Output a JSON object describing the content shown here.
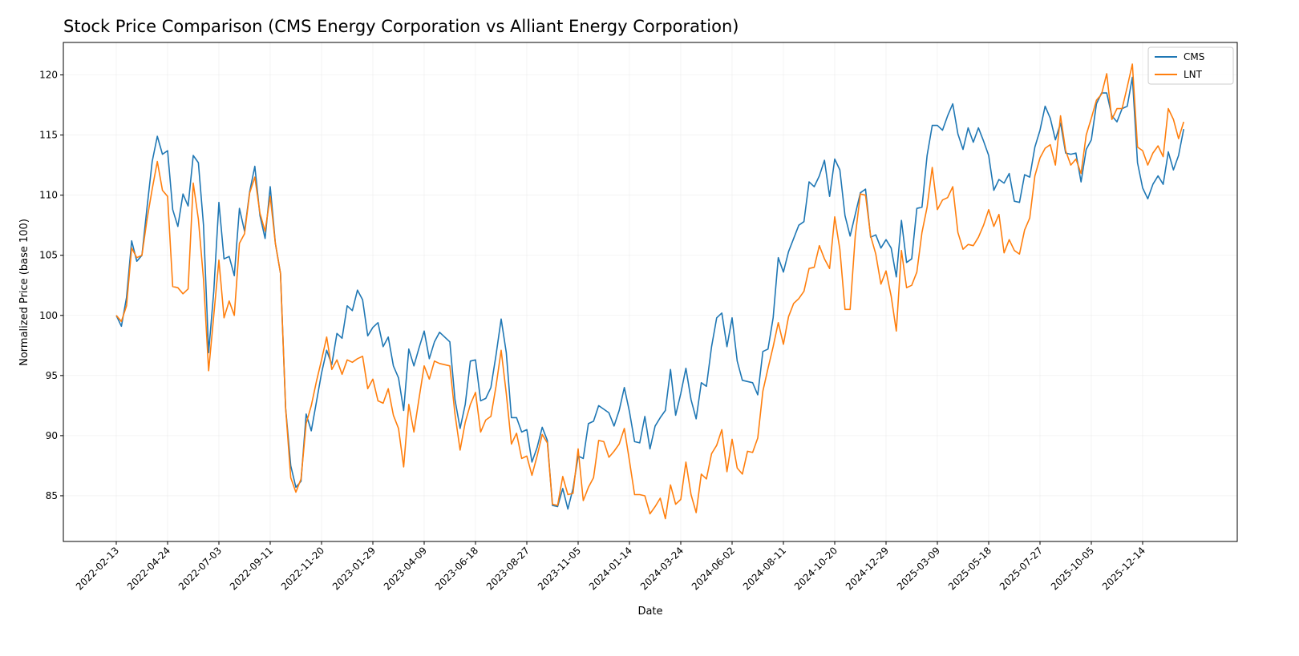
{
  "chart_data": {
    "type": "line",
    "title": "Stock Price Comparison (CMS Energy Corporation vs Alliant Energy Corporation)",
    "xlabel": "Date",
    "ylabel": "Normalized Price (base 100)",
    "ylim": [
      81.2,
      122.7
    ],
    "yticks": [
      85,
      90,
      95,
      100,
      105,
      110,
      115,
      120
    ],
    "xticks": [
      "2022-02-13",
      "2022-04-24",
      "2022-07-03",
      "2022-09-11",
      "2022-11-20",
      "2023-01-29",
      "2023-04-09",
      "2023-06-18",
      "2023-08-27",
      "2023-11-05",
      "2024-01-14",
      "2024-03-24",
      "2024-06-02",
      "2024-08-11",
      "2024-10-20",
      "2024-12-29",
      "2025-03-09",
      "2025-05-18",
      "2025-07-27",
      "2025-10-05",
      "2025-12-14"
    ],
    "grid": true,
    "legend": "top-right",
    "x": [
      "2022-02-13",
      "2022-02-20",
      "2022-02-27",
      "2022-03-06",
      "2022-03-13",
      "2022-03-20",
      "2022-03-27",
      "2022-04-03",
      "2022-04-10",
      "2022-04-17",
      "2022-04-24",
      "2022-05-01",
      "2022-05-08",
      "2022-05-15",
      "2022-05-22",
      "2022-05-29",
      "2022-06-05",
      "2022-06-12",
      "2022-06-19",
      "2022-06-26",
      "2022-07-03",
      "2022-07-10",
      "2022-07-17",
      "2022-07-24",
      "2022-07-31",
      "2022-08-07",
      "2022-08-14",
      "2022-08-21",
      "2022-08-28",
      "2022-09-04",
      "2022-09-11",
      "2022-09-18",
      "2022-09-25",
      "2022-10-02",
      "2022-10-09",
      "2022-10-16",
      "2022-10-23",
      "2022-10-30",
      "2022-11-06",
      "2022-11-13",
      "2022-11-20",
      "2022-11-27",
      "2022-12-04",
      "2022-12-11",
      "2022-12-18",
      "2022-12-25",
      "2023-01-01",
      "2023-01-08",
      "2023-01-15",
      "2023-01-22",
      "2023-01-29",
      "2023-02-05",
      "2023-02-12",
      "2023-02-19",
      "2023-02-26",
      "2023-03-05",
      "2023-03-12",
      "2023-03-19",
      "2023-03-26",
      "2023-04-02",
      "2023-04-09",
      "2023-04-16",
      "2023-04-23",
      "2023-04-30",
      "2023-05-07",
      "2023-05-14",
      "2023-05-21",
      "2023-05-28",
      "2023-06-04",
      "2023-06-11",
      "2023-06-18",
      "2023-06-25",
      "2023-07-02",
      "2023-07-09",
      "2023-07-16",
      "2023-07-23",
      "2023-07-30",
      "2023-08-06",
      "2023-08-13",
      "2023-08-20",
      "2023-08-27",
      "2023-09-03",
      "2023-09-10",
      "2023-09-17",
      "2023-09-24",
      "2023-10-01",
      "2023-10-08",
      "2023-10-15",
      "2023-10-22",
      "2023-10-29",
      "2023-11-05",
      "2023-11-12",
      "2023-11-19",
      "2023-11-26",
      "2023-12-03",
      "2023-12-10",
      "2023-12-17",
      "2023-12-24",
      "2023-12-31",
      "2024-01-07",
      "2024-01-14",
      "2024-01-21",
      "2024-01-28",
      "2024-02-04",
      "2024-02-11",
      "2024-02-18",
      "2024-02-25",
      "2024-03-03",
      "2024-03-10",
      "2024-03-17",
      "2024-03-24",
      "2024-03-31",
      "2024-04-07",
      "2024-04-14",
      "2024-04-21",
      "2024-04-28",
      "2024-05-05",
      "2024-05-12",
      "2024-05-19",
      "2024-05-26",
      "2024-06-02",
      "2024-06-09",
      "2024-06-16",
      "2024-06-23",
      "2024-06-30",
      "2024-07-07",
      "2024-07-14",
      "2024-07-21",
      "2024-07-28",
      "2024-08-04",
      "2024-08-11",
      "2024-08-18",
      "2024-08-25",
      "2024-09-01",
      "2024-09-08",
      "2024-09-15",
      "2024-09-22",
      "2024-09-29",
      "2024-10-06",
      "2024-10-13",
      "2024-10-20",
      "2024-10-27",
      "2024-11-03",
      "2024-11-10",
      "2024-11-17",
      "2024-11-24",
      "2024-12-01",
      "2024-12-08",
      "2024-12-15",
      "2024-12-22",
      "2024-12-29",
      "2025-01-05",
      "2025-01-12",
      "2025-01-19",
      "2025-01-26",
      "2025-02-02",
      "2025-02-09",
      "2025-02-16",
      "2025-02-23",
      "2025-03-02",
      "2025-03-09",
      "2025-03-16",
      "2025-03-23",
      "2025-03-30",
      "2025-04-06",
      "2025-04-13",
      "2025-04-20",
      "2025-04-27",
      "2025-05-04",
      "2025-05-11",
      "2025-05-18",
      "2025-05-25",
      "2025-06-01",
      "2025-06-08",
      "2025-06-15",
      "2025-06-22",
      "2025-06-29",
      "2025-07-06",
      "2025-07-13",
      "2025-07-20",
      "2025-07-27",
      "2025-08-03",
      "2025-08-10",
      "2025-08-17",
      "2025-08-24",
      "2025-08-31",
      "2025-09-07",
      "2025-09-14",
      "2025-09-21",
      "2025-09-28",
      "2025-10-05",
      "2025-10-12",
      "2025-10-19",
      "2025-10-26",
      "2025-11-02",
      "2025-11-09",
      "2025-11-16",
      "2025-11-23",
      "2025-11-30",
      "2025-12-07",
      "2025-12-14",
      "2025-12-21",
      "2025-12-28",
      "2026-01-04",
      "2026-01-11",
      "2026-01-18",
      "2026-01-25",
      "2026-02-01",
      "2026-02-08"
    ],
    "series": [
      {
        "name": "CMS",
        "color": "#1f77b4",
        "values": [
          100,
          99.1,
          101.5,
          106.2,
          104.5,
          105,
          109,
          112.8,
          114.9,
          113.4,
          113.7,
          108.8,
          107.4,
          110.1,
          109.1,
          113.3,
          112.7,
          107.5,
          96.9,
          102,
          109.4,
          104.7,
          104.9,
          103.3,
          108.9,
          107,
          110.3,
          112.4,
          108.3,
          106.4,
          110.7,
          106,
          103.5,
          92.3,
          87.5,
          85.7,
          86.2,
          91.8,
          90.4,
          92.8,
          95.2,
          97.1,
          95.9,
          98.5,
          98.1,
          100.8,
          100.4,
          102.1,
          101.3,
          98.3,
          99,
          99.4,
          97.4,
          98.2,
          95.8,
          94.8,
          92.1,
          97.2,
          95.8,
          97.3,
          98.7,
          96.4,
          97.8,
          98.6,
          98.2,
          97.8,
          93,
          90.6,
          92.6,
          96.2,
          96.3,
          92.9,
          93.1,
          94,
          96.7,
          99.7,
          96.9,
          91.5,
          91.5,
          90.3,
          90.5,
          87.8,
          89,
          90.7,
          89.6,
          84.2,
          84.1,
          85.6,
          83.9,
          85.6,
          88.3,
          88.1,
          91,
          91.2,
          92.5,
          92.2,
          91.9,
          90.8,
          92.1,
          94,
          92,
          89.5,
          89.4,
          91.6,
          88.9,
          90.8,
          91.5,
          92.1,
          95.5,
          91.7,
          93.5,
          95.6,
          93,
          91.4,
          94.4,
          94.1,
          97.4,
          99.8,
          100.2,
          97.4,
          99.8,
          96.2,
          94.6,
          94.5,
          94.4,
          93.4,
          97,
          97.2,
          99.8,
          104.8,
          103.6,
          105.3,
          106.4,
          107.5,
          107.8,
          111.1,
          110.7,
          111.6,
          112.9,
          109.9,
          113,
          112.1,
          108.3,
          106.6,
          108.4,
          110.2,
          110.5,
          106.5,
          106.7,
          105.6,
          106.3,
          105.6,
          103.2,
          107.9,
          104.4,
          104.7,
          108.9,
          109,
          113.3,
          115.8,
          115.8,
          115.4,
          116.6,
          117.6,
          115.1,
          113.8,
          115.6,
          114.4,
          115.6,
          114.5,
          113.3,
          110.4,
          111.3,
          111,
          111.8,
          109.5,
          109.4,
          111.7,
          111.5,
          114,
          115.4,
          117.4,
          116.4,
          114.6,
          116,
          113.5,
          113.4,
          113.5,
          111.1,
          113.8,
          114.6,
          117.6,
          118.5,
          118.5,
          116.6,
          116.1,
          117.2,
          117.4,
          119.8,
          112.7,
          110.6,
          109.7,
          110.9,
          111.6,
          110.9,
          113.6,
          112.1,
          113.3,
          115.5
        ]
      },
      {
        "name": "LNT",
        "color": "#ff7f0e",
        "values": [
          100,
          99.5,
          100.8,
          105.6,
          104.8,
          105,
          108,
          110.5,
          112.8,
          110.4,
          109.9,
          102.4,
          102.3,
          101.8,
          102.2,
          111,
          108,
          103,
          95.4,
          100,
          104.6,
          99.8,
          101.2,
          100,
          106,
          106.8,
          110.2,
          111.5,
          108.5,
          107,
          109.9,
          106,
          103.5,
          92.3,
          86.5,
          85.3,
          86.4,
          91,
          92.5,
          94.5,
          96.3,
          98.2,
          95.5,
          96.3,
          95.1,
          96.3,
          96.1,
          96.4,
          96.6,
          93.9,
          94.7,
          92.9,
          92.7,
          93.9,
          91.7,
          90.6,
          87.4,
          92.6,
          90.3,
          93.1,
          95.8,
          94.7,
          96.2,
          96,
          95.9,
          95.8,
          91.8,
          88.8,
          91.1,
          92.6,
          93.6,
          90.3,
          91.3,
          91.6,
          94.1,
          97.1,
          93.5,
          89.3,
          90.2,
          88.1,
          88.3,
          86.7,
          88.3,
          90.1,
          89.4,
          84.3,
          84.2,
          86.6,
          85.1,
          85.2,
          88.9,
          84.6,
          85.7,
          86.5,
          89.6,
          89.5,
          88.2,
          88.7,
          89.3,
          90.6,
          87.9,
          85.1,
          85.1,
          85,
          83.5,
          84.1,
          84.8,
          83.1,
          85.9,
          84.3,
          84.7,
          87.8,
          85.1,
          83.6,
          86.8,
          86.4,
          88.5,
          89.2,
          90.5,
          87,
          89.7,
          87.3,
          86.8,
          88.7,
          88.6,
          89.8,
          93.7,
          95.6,
          97.4,
          99.4,
          97.6,
          99.9,
          101,
          101.4,
          102,
          103.9,
          104,
          105.8,
          104.7,
          103.9,
          108.2,
          105.5,
          100.5,
          100.5,
          106.6,
          110.1,
          110,
          106.6,
          105.1,
          102.6,
          103.7,
          101.6,
          98.7,
          105.4,
          102.3,
          102.5,
          103.6,
          106.9,
          109,
          112.3,
          108.8,
          109.6,
          109.8,
          110.7,
          106.9,
          105.5,
          105.9,
          105.8,
          106.5,
          107.5,
          108.8,
          107.4,
          108.4,
          105.2,
          106.3,
          105.4,
          105.1,
          107.1,
          108.1,
          111.6,
          113.1,
          113.9,
          114.2,
          112.5,
          116.6,
          113.7,
          112.5,
          113,
          111.8,
          115,
          116.4,
          117.9,
          118.4,
          120.1,
          116.3,
          117.2,
          117.2,
          119,
          120.9,
          114,
          113.7,
          112.5,
          113.5,
          114.1,
          113.2,
          117.2,
          116.3,
          114.7,
          116.1
        ]
      }
    ]
  }
}
